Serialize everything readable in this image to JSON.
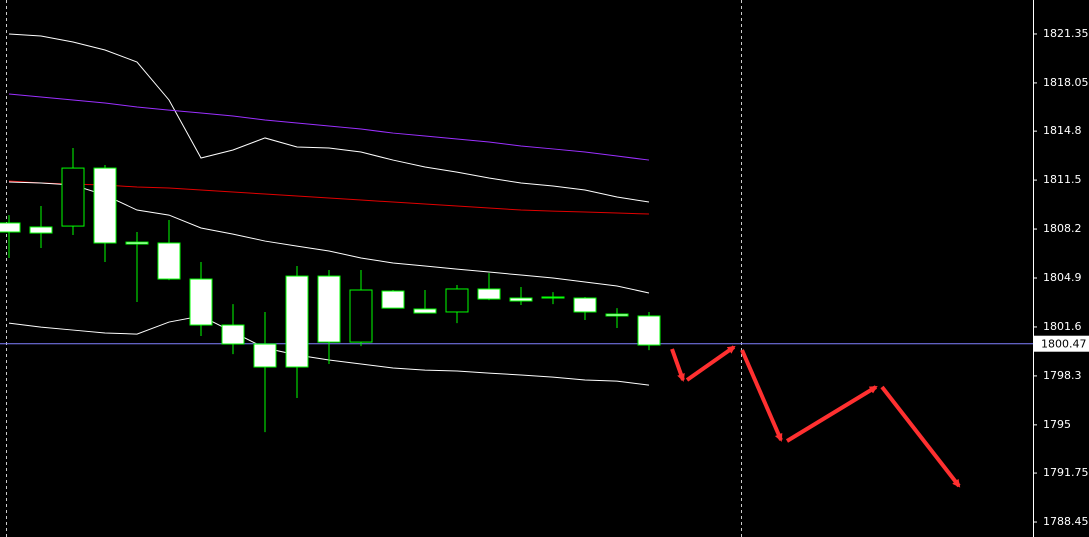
{
  "chart_data": {
    "type": "candlestick",
    "categories": [
      null,
      null,
      null,
      null,
      null,
      null,
      null,
      null,
      null,
      null,
      null,
      null,
      null,
      null,
      null,
      null,
      null,
      null,
      null,
      null,
      null
    ],
    "open": [
      1808.61,
      1808.34,
      1808.4,
      1812.31,
      1807.32,
      1807.26,
      1804.83,
      1801.73,
      1800.45,
      1805.03,
      1805.03,
      1800.58,
      1804.02,
      1802.81,
      1802.61,
      1804.16,
      1803.55,
      1803.62,
      1803.55,
      1802.47,
      1802.34
    ],
    "high": [
      1809.14,
      1809.75,
      1813.66,
      1812.52,
      1808.0,
      1808.81,
      1805.98,
      1803.14,
      1802.61,
      1805.71,
      1805.44,
      1805.44,
      1804.09,
      1804.09,
      1804.43,
      1805.23,
      1804.29,
      1803.95,
      1803.62,
      1802.87,
      1802.61
    ],
    "low": [
      1806.25,
      1806.92,
      1807.8,
      1805.98,
      1803.28,
      1804.76,
      1800.99,
      1799.77,
      1794.51,
      1796.81,
      1799.1,
      1800.31,
      1802.87,
      1802.54,
      1801.86,
      1803.41,
      1803.08,
      1803.14,
      1802.07,
      1801.53,
      1800.04
    ],
    "close": [
      1808.0,
      1807.93,
      1812.31,
      1807.26,
      1807.19,
      1804.83,
      1801.73,
      1800.45,
      1798.9,
      1798.9,
      1800.58,
      1804.09,
      1802.87,
      1802.54,
      1804.16,
      1803.48,
      1803.35,
      1803.55,
      1802.61,
      1802.34,
      1800.38
    ],
    "up_color": "#000000",
    "down_color": "#ffffff",
    "wick_color": "#00ff00",
    "series": [
      {
        "color": "#ffffff",
        "values": [
          1821.35,
          1821.21,
          1820.81,
          1820.27,
          1819.46,
          1816.9,
          1812.99,
          1813.53,
          1814.34,
          1813.73,
          1813.66,
          1813.39,
          1812.85,
          1812.38,
          1812.04,
          1811.64,
          1811.3,
          1811.1,
          1810.83,
          1810.36,
          1810.02
        ]
      },
      {
        "color": "#9b30ff",
        "values": [
          1817.3,
          1817.1,
          1816.9,
          1816.7,
          1816.43,
          1816.22,
          1816.02,
          1815.82,
          1815.55,
          1815.35,
          1815.15,
          1814.94,
          1814.67,
          1814.47,
          1814.27,
          1814.07,
          1813.8,
          1813.6,
          1813.39,
          1813.12,
          1812.85
        ]
      },
      {
        "color": "#e00000",
        "values": [
          1811.44,
          1811.3,
          1811.23,
          1811.17,
          1811.03,
          1810.97,
          1810.83,
          1810.7,
          1810.56,
          1810.43,
          1810.29,
          1810.16,
          1810.02,
          1809.89,
          1809.75,
          1809.62,
          1809.48,
          1809.41,
          1809.35,
          1809.28,
          1809.21
        ]
      },
      {
        "color": "#ffffff",
        "values": [
          1811.37,
          1811.3,
          1811.17,
          1810.49,
          1809.48,
          1809.14,
          1808.27,
          1807.86,
          1807.39,
          1807.05,
          1806.72,
          1806.25,
          1805.91,
          1805.71,
          1805.5,
          1805.3,
          1805.1,
          1804.9,
          1804.63,
          1804.36,
          1803.89
        ]
      },
      {
        "color": "#ffffff",
        "values": [
          1801.86,
          1801.59,
          1801.39,
          1801.19,
          1801.12,
          1801.93,
          1802.34,
          1801.26,
          1800.18,
          1799.71,
          1799.37,
          1799.1,
          1798.83,
          1798.69,
          1798.63,
          1798.49,
          1798.36,
          1798.22,
          1798.02,
          1797.95,
          1797.68
        ]
      }
    ],
    "price_line": {
      "value": 1800.47,
      "color": "#8080ff"
    },
    "ylim": [
      1787.44,
      1823.64
    ],
    "yticks": [
      1821.35,
      1818.05,
      1814.8,
      1811.5,
      1808.2,
      1804.9,
      1801.6,
      1798.3,
      1795.0,
      1791.75,
      1788.45
    ],
    "grid": false
  }
}
